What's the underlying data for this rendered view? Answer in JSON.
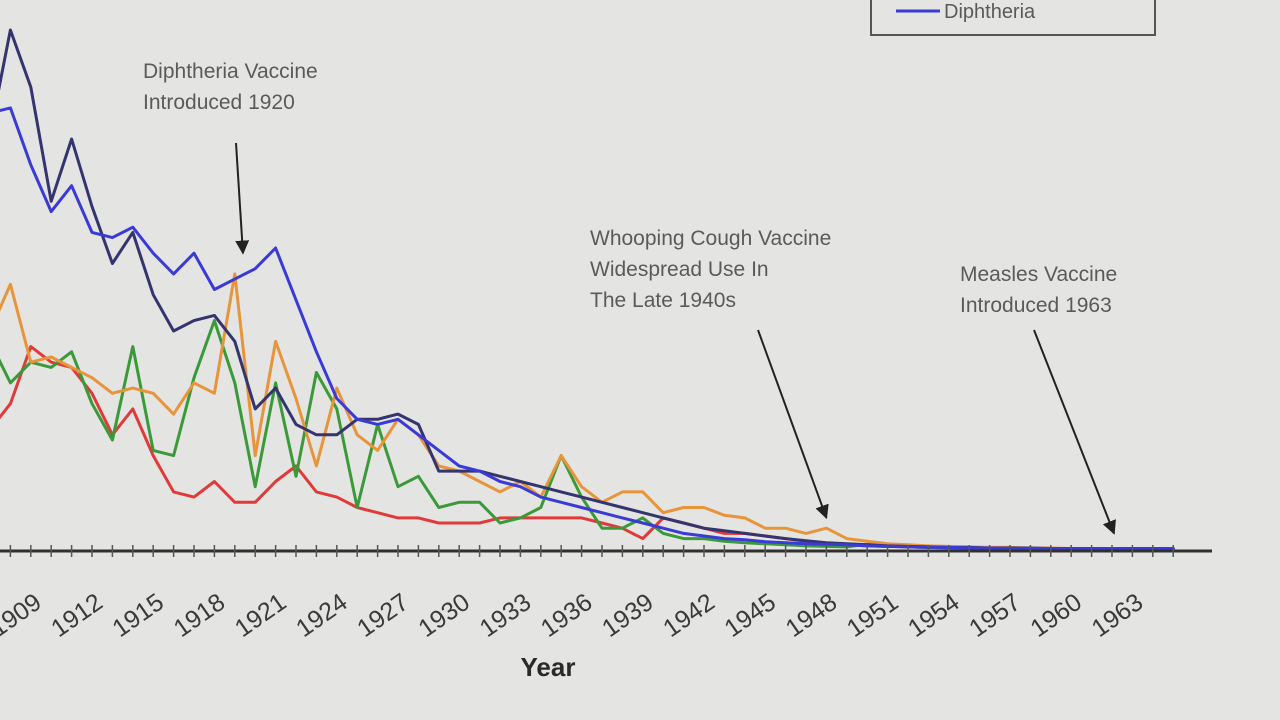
{
  "chart_data": {
    "type": "line",
    "xlabel": "Year",
    "ylabel": "",
    "title": "",
    "x_tick_labels": [
      "1909",
      "1912",
      "1915",
      "1918",
      "1921",
      "1924",
      "1927",
      "1930",
      "1933",
      "1936",
      "1939",
      "1942",
      "1945",
      "1948",
      "1951",
      "1954",
      "1957",
      "1960",
      "1963"
    ],
    "x_range": [
      1908,
      1966
    ],
    "y_range": [
      0,
      100
    ],
    "y_axis_visible": false,
    "grid": false,
    "legend": {
      "placement": "top-right",
      "visible_entries": [
        "Diphtheria"
      ]
    },
    "series": [
      {
        "name": "",
        "color": "#34346e",
        "values": [
          [
            1908,
            80
          ],
          [
            1909,
            100
          ],
          [
            1910,
            89
          ],
          [
            1911,
            67
          ],
          [
            1912,
            79
          ],
          [
            1913,
            66
          ],
          [
            1914,
            55
          ],
          [
            1915,
            61
          ],
          [
            1916,
            49
          ],
          [
            1917,
            42
          ],
          [
            1918,
            44
          ],
          [
            1919,
            45
          ],
          [
            1920,
            40
          ],
          [
            1921,
            27
          ],
          [
            1922,
            31
          ],
          [
            1923,
            24
          ],
          [
            1924,
            22
          ],
          [
            1925,
            22
          ],
          [
            1926,
            25
          ],
          [
            1927,
            25
          ],
          [
            1928,
            26
          ],
          [
            1929,
            24
          ],
          [
            1930,
            15
          ],
          [
            1931,
            15
          ],
          [
            1932,
            15
          ],
          [
            1933,
            14
          ],
          [
            1934,
            13
          ],
          [
            1935,
            12
          ],
          [
            1936,
            11
          ],
          [
            1937,
            10
          ],
          [
            1938,
            9
          ],
          [
            1939,
            8
          ],
          [
            1940,
            7
          ],
          [
            1941,
            6
          ],
          [
            1942,
            5
          ],
          [
            1943,
            4
          ],
          [
            1944,
            3.5
          ],
          [
            1945,
            3
          ],
          [
            1946,
            2.5
          ],
          [
            1947,
            2
          ],
          [
            1948,
            1.6
          ],
          [
            1949,
            1.2
          ],
          [
            1950,
            1
          ],
          [
            1951,
            0.8
          ],
          [
            1952,
            0.6
          ],
          [
            1953,
            0.5
          ],
          [
            1954,
            0.4
          ],
          [
            1955,
            0.3
          ],
          [
            1956,
            0.3
          ],
          [
            1957,
            0.2
          ],
          [
            1958,
            0.2
          ],
          [
            1959,
            0.2
          ],
          [
            1960,
            0.1
          ],
          [
            1961,
            0.1
          ],
          [
            1962,
            0.1
          ],
          [
            1963,
            0.1
          ],
          [
            1964,
            0.1
          ],
          [
            1965,
            0.1
          ],
          [
            1966,
            0.1
          ]
        ]
      },
      {
        "name": "Diphtheria",
        "color": "#3a3ad8",
        "values": [
          [
            1908,
            84
          ],
          [
            1909,
            85
          ],
          [
            1910,
            74
          ],
          [
            1911,
            65
          ],
          [
            1912,
            70
          ],
          [
            1913,
            61
          ],
          [
            1914,
            60
          ],
          [
            1915,
            62
          ],
          [
            1916,
            57
          ],
          [
            1917,
            53
          ],
          [
            1918,
            57
          ],
          [
            1919,
            50
          ],
          [
            1920,
            52
          ],
          [
            1921,
            54
          ],
          [
            1922,
            58
          ],
          [
            1923,
            48
          ],
          [
            1924,
            38
          ],
          [
            1925,
            29
          ],
          [
            1926,
            25
          ],
          [
            1927,
            24
          ],
          [
            1928,
            25
          ],
          [
            1929,
            22
          ],
          [
            1930,
            19
          ],
          [
            1931,
            16
          ],
          [
            1932,
            15
          ],
          [
            1933,
            13
          ],
          [
            1934,
            12
          ],
          [
            1935,
            10
          ],
          [
            1936,
            9
          ],
          [
            1937,
            8
          ],
          [
            1938,
            7
          ],
          [
            1939,
            6
          ],
          [
            1940,
            5
          ],
          [
            1941,
            4
          ],
          [
            1942,
            3
          ],
          [
            1943,
            2.5
          ],
          [
            1944,
            2
          ],
          [
            1945,
            1.8
          ],
          [
            1946,
            1.4
          ],
          [
            1947,
            1.2
          ],
          [
            1948,
            1
          ],
          [
            1949,
            0.9
          ],
          [
            1950,
            0.8
          ],
          [
            1951,
            0.6
          ],
          [
            1952,
            0.5
          ],
          [
            1953,
            0.4
          ],
          [
            1954,
            0.3
          ],
          [
            1955,
            0.3
          ],
          [
            1956,
            0.2
          ],
          [
            1957,
            0.2
          ],
          [
            1958,
            0.1
          ],
          [
            1959,
            0.1
          ],
          [
            1960,
            0.1
          ],
          [
            1961,
            0.1
          ],
          [
            1962,
            0.1
          ],
          [
            1963,
            0.1
          ],
          [
            1964,
            0.1
          ],
          [
            1965,
            0.1
          ],
          [
            1966,
            0.1
          ]
        ]
      },
      {
        "name": "",
        "color": "#e8943a",
        "values": [
          [
            1908,
            42
          ],
          [
            1909,
            51
          ],
          [
            1910,
            36
          ],
          [
            1911,
            37
          ],
          [
            1912,
            35
          ],
          [
            1913,
            33
          ],
          [
            1914,
            30
          ],
          [
            1915,
            31
          ],
          [
            1916,
            30
          ],
          [
            1917,
            26
          ],
          [
            1918,
            32
          ],
          [
            1919,
            30
          ],
          [
            1920,
            53
          ],
          [
            1921,
            18
          ],
          [
            1922,
            40
          ],
          [
            1923,
            29
          ],
          [
            1924,
            16
          ],
          [
            1925,
            31
          ],
          [
            1926,
            22
          ],
          [
            1927,
            19
          ],
          [
            1928,
            25
          ],
          [
            1929,
            22
          ],
          [
            1930,
            16
          ],
          [
            1931,
            15
          ],
          [
            1932,
            13
          ],
          [
            1933,
            11
          ],
          [
            1934,
            13
          ],
          [
            1935,
            10
          ],
          [
            1936,
            18
          ],
          [
            1937,
            12
          ],
          [
            1938,
            9
          ],
          [
            1939,
            11
          ],
          [
            1940,
            11
          ],
          [
            1941,
            7
          ],
          [
            1942,
            8
          ],
          [
            1943,
            8
          ],
          [
            1944,
            6.5
          ],
          [
            1945,
            6
          ],
          [
            1946,
            4
          ],
          [
            1947,
            4
          ],
          [
            1948,
            3
          ],
          [
            1949,
            4
          ],
          [
            1950,
            2
          ],
          [
            1951,
            1.5
          ],
          [
            1952,
            1
          ],
          [
            1953,
            0.8
          ],
          [
            1954,
            0.6
          ],
          [
            1955,
            0.5
          ],
          [
            1956,
            0.4
          ],
          [
            1957,
            0.3
          ],
          [
            1958,
            0.3
          ],
          [
            1959,
            0.2
          ],
          [
            1960,
            0.2
          ],
          [
            1961,
            0.1
          ],
          [
            1962,
            0.1
          ],
          [
            1963,
            0.1
          ],
          [
            1964,
            0.1
          ],
          [
            1965,
            0.1
          ],
          [
            1966,
            0.1
          ]
        ]
      },
      {
        "name": "",
        "color": "#3a9a3a",
        "values": [
          [
            1908,
            40
          ],
          [
            1909,
            32
          ],
          [
            1910,
            36
          ],
          [
            1911,
            35
          ],
          [
            1912,
            38
          ],
          [
            1913,
            28
          ],
          [
            1914,
            21
          ],
          [
            1915,
            39
          ],
          [
            1916,
            19
          ],
          [
            1917,
            18
          ],
          [
            1918,
            33
          ],
          [
            1919,
            44
          ],
          [
            1920,
            32
          ],
          [
            1921,
            12
          ],
          [
            1922,
            32
          ],
          [
            1923,
            14
          ],
          [
            1924,
            34
          ],
          [
            1925,
            27
          ],
          [
            1926,
            8
          ],
          [
            1927,
            24
          ],
          [
            1928,
            12
          ],
          [
            1929,
            14
          ],
          [
            1930,
            8
          ],
          [
            1931,
            9
          ],
          [
            1932,
            9
          ],
          [
            1933,
            5
          ],
          [
            1934,
            6
          ],
          [
            1935,
            8
          ],
          [
            1936,
            18
          ],
          [
            1937,
            10
          ],
          [
            1938,
            4
          ],
          [
            1939,
            4
          ],
          [
            1940,
            6
          ],
          [
            1941,
            3
          ],
          [
            1942,
            2
          ],
          [
            1943,
            2
          ],
          [
            1944,
            1.5
          ],
          [
            1945,
            1.2
          ],
          [
            1946,
            1
          ],
          [
            1947,
            0.8
          ],
          [
            1948,
            0.6
          ],
          [
            1949,
            0.5
          ],
          [
            1950,
            0.4
          ],
          [
            1951,
            0.9
          ],
          [
            1952,
            0.6
          ],
          [
            1953,
            0.4
          ],
          [
            1954,
            0.3
          ],
          [
            1955,
            0.2
          ],
          [
            1956,
            0.2
          ],
          [
            1957,
            0.1
          ],
          [
            1958,
            0.1
          ],
          [
            1959,
            0.1
          ],
          [
            1960,
            0.1
          ],
          [
            1961,
            0.1
          ],
          [
            1962,
            0.1
          ],
          [
            1963,
            0.1
          ],
          [
            1964,
            0.1
          ],
          [
            1965,
            0.1
          ],
          [
            1966,
            0.1
          ]
        ]
      },
      {
        "name": "",
        "color": "#e03a3a",
        "values": [
          [
            1908,
            23
          ],
          [
            1909,
            28
          ],
          [
            1910,
            39
          ],
          [
            1911,
            36
          ],
          [
            1912,
            35
          ],
          [
            1913,
            30
          ],
          [
            1914,
            22
          ],
          [
            1915,
            27
          ],
          [
            1916,
            18
          ],
          [
            1917,
            11
          ],
          [
            1918,
            10
          ],
          [
            1919,
            13
          ],
          [
            1920,
            9
          ],
          [
            1921,
            9
          ],
          [
            1922,
            13
          ],
          [
            1923,
            16
          ],
          [
            1924,
            11
          ],
          [
            1925,
            10
          ],
          [
            1926,
            8
          ],
          [
            1927,
            7
          ],
          [
            1928,
            6
          ],
          [
            1929,
            6
          ],
          [
            1930,
            5
          ],
          [
            1931,
            5
          ],
          [
            1932,
            5
          ],
          [
            1933,
            6
          ],
          [
            1934,
            6
          ],
          [
            1935,
            6
          ],
          [
            1936,
            6
          ],
          [
            1937,
            6
          ],
          [
            1938,
            5
          ],
          [
            1939,
            4
          ],
          [
            1940,
            2
          ],
          [
            1941,
            6
          ],
          [
            1942,
            5
          ],
          [
            1943,
            4
          ],
          [
            1944,
            3
          ],
          [
            1945,
            3
          ],
          [
            1946,
            2.5
          ],
          [
            1947,
            2
          ],
          [
            1948,
            1.5
          ],
          [
            1949,
            1
          ],
          [
            1950,
            0.8
          ],
          [
            1951,
            0.6
          ],
          [
            1952,
            0.5
          ],
          [
            1953,
            0.4
          ],
          [
            1954,
            0.3
          ],
          [
            1955,
            0.3
          ],
          [
            1956,
            0.2
          ],
          [
            1957,
            0.2
          ],
          [
            1958,
            0.1
          ],
          [
            1959,
            0.1
          ],
          [
            1960,
            0.1
          ],
          [
            1961,
            0.1
          ],
          [
            1962,
            0.1
          ],
          [
            1963,
            0.1
          ],
          [
            1964,
            0.1
          ],
          [
            1965,
            0.1
          ],
          [
            1966,
            0.1
          ]
        ]
      }
    ],
    "annotations": [
      {
        "lines": [
          "Diphtheria Vaccine",
          "Introduced 1920"
        ],
        "arrow_to_year": 1920.4,
        "arrow_to_value": 57
      },
      {
        "lines": [
          "Whooping Cough Vaccine",
          "Widespread Use In",
          "The Late 1940s"
        ],
        "arrow_to_year": 1949,
        "arrow_to_value": 6
      },
      {
        "lines": [
          "Measles Vaccine",
          "Introduced 1963"
        ],
        "arrow_to_year": 1963.1,
        "arrow_to_value": 3
      }
    ]
  }
}
